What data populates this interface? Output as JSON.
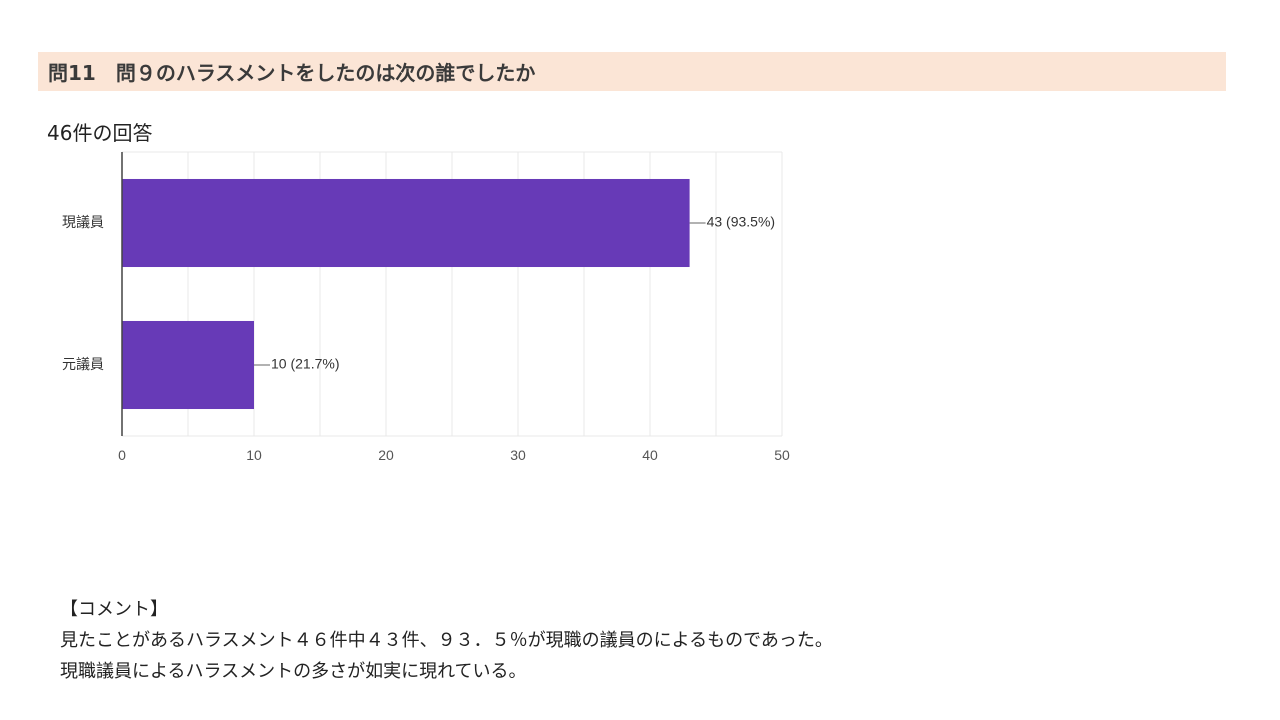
{
  "header": {
    "title": "問11　問９のハラスメントをしたのは次の誰でしたか"
  },
  "response_count": "46件の回答",
  "colors": {
    "header_bg": "#fbe5d6",
    "bar": "#673ab7",
    "grid": "#e8e8e8",
    "axis": "#444444"
  },
  "chart_data": {
    "type": "bar",
    "orientation": "horizontal",
    "title": "",
    "xlabel": "",
    "ylabel": "",
    "categories": [
      "現議員",
      "元議員"
    ],
    "values": [
      43,
      10
    ],
    "data_labels": [
      "43 (93.5%)",
      "10 (21.7%)"
    ],
    "xlim": [
      0,
      50
    ],
    "x_ticks": [
      0,
      10,
      20,
      30,
      40,
      50
    ],
    "grid": true
  },
  "comment": {
    "heading": "【コメント】",
    "line1": "見たことがあるハラスメント４６件中４３件、９３．５％が現職の議員のによるものであった。",
    "line2": "現職議員によるハラスメントの多さが如実に現れている。"
  }
}
